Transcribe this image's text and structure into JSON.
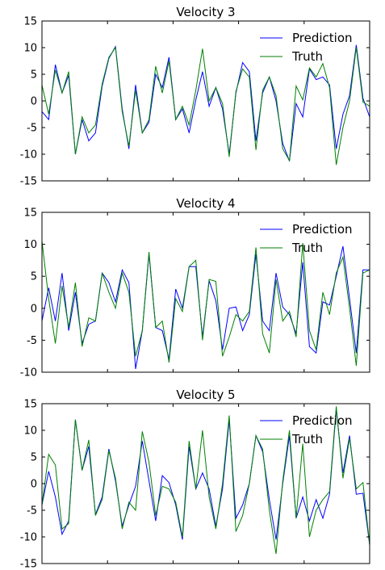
{
  "chart_data": [
    {
      "type": "line",
      "title": "Velocity 3",
      "ylim": [
        -15,
        15
      ],
      "yticks": [
        -15,
        -10,
        -5,
        0,
        5,
        10,
        15
      ],
      "legend": "top-right",
      "series": [
        {
          "name": "Prediction",
          "color": "#0000ff",
          "values": [
            -2,
            -3.5,
            6.8,
            1.5,
            4.8,
            -10,
            -3.5,
            -7.5,
            -6,
            2.8,
            8,
            10.2,
            -1.5,
            -9,
            3,
            -6,
            -4,
            5,
            2.5,
            8.2,
            -3.5,
            -1.5,
            -6,
            0.2,
            5.5,
            -1,
            2.5,
            -1.5,
            -10,
            1.5,
            7.2,
            5.5,
            -7.5,
            1.5,
            4.5,
            0,
            -8,
            -11.3,
            -0.5,
            -3,
            6,
            4,
            4.5,
            3,
            -9,
            -2.5,
            1,
            10.5,
            0.5,
            -3
          ]
        },
        {
          "name": "Truth",
          "color": "#008000",
          "values": [
            3,
            -2.5,
            5.8,
            1.5,
            5.5,
            -10,
            -3,
            -6,
            -4.5,
            3.2,
            8.2,
            10,
            -2,
            -8.5,
            2,
            -6,
            -3.5,
            6.5,
            1.5,
            7.5,
            -3.5,
            -1,
            -4.5,
            2,
            9.8,
            0,
            2.5,
            -0.5,
            -10.5,
            1.8,
            6,
            4.5,
            -9.2,
            2,
            4.5,
            1,
            -9,
            -11.2,
            2.8,
            0.2,
            6.2,
            4.5,
            7,
            2.5,
            -12,
            -5,
            0,
            10,
            -0.2,
            -1
          ]
        }
      ]
    },
    {
      "type": "line",
      "title": "Velocity 4",
      "ylim": [
        -10,
        15
      ],
      "yticks": [
        -10,
        -5,
        0,
        5,
        10,
        15
      ],
      "legend": "top-right",
      "series": [
        {
          "name": "Prediction",
          "color": "#0000ff",
          "values": [
            -2,
            3.2,
            -2,
            5.5,
            -3.5,
            2.5,
            -5.5,
            -2.5,
            -2,
            5.5,
            4,
            1,
            6,
            4,
            -9.5,
            -3.5,
            8.5,
            -3,
            -3.5,
            -8,
            3,
            0,
            6.5,
            6.5,
            -4.5,
            4.3,
            1.2,
            -6.5,
            0,
            0.2,
            -3.5,
            -1,
            8.5,
            -2,
            -3.5,
            5.5,
            0.2,
            -1,
            -4,
            7.2,
            -6,
            -7,
            1,
            0.5,
            5,
            9.7,
            1.5,
            -7,
            6,
            6
          ]
        },
        {
          "name": "Truth",
          "color": "#008000",
          "values": [
            10.5,
            1.5,
            -5.5,
            3.5,
            -3,
            4,
            -6,
            -1.5,
            -2,
            5.5,
            2.5,
            0,
            5.5,
            2.5,
            -7.5,
            -3.5,
            8.8,
            -3,
            -2,
            -8.5,
            1.5,
            -0.5,
            6.5,
            7.5,
            -5,
            4.5,
            4.2,
            -7.5,
            -4.5,
            -1,
            -2,
            -0.5,
            9.5,
            -4,
            -7,
            4.5,
            -2,
            -0.5,
            -4.5,
            10.2,
            -3.5,
            -6.5,
            2.5,
            -1,
            5.5,
            8,
            0,
            -9,
            5.5,
            6
          ]
        }
      ]
    },
    {
      "type": "line",
      "title": "Velocity 5",
      "ylim": [
        -15,
        15
      ],
      "yticks": [
        -15,
        -10,
        -5,
        0,
        5,
        10,
        15
      ],
      "legend": "top-right",
      "series": [
        {
          "name": "Prediction",
          "color": "#0000ff",
          "values": [
            -4,
            2.3,
            -2.5,
            -9.5,
            -7,
            12,
            2.5,
            7,
            -5.8,
            -2.5,
            6.5,
            0.5,
            -8,
            -4,
            -0.5,
            8,
            0.5,
            -7,
            1.5,
            0.2,
            -4,
            -10.5,
            7,
            -1,
            2,
            -1,
            -8,
            -1,
            12,
            -6.5,
            -4,
            0,
            9,
            6,
            -3,
            -10.5,
            0,
            9,
            -6.5,
            -2.5,
            -7,
            -3,
            -6.5,
            -2,
            14,
            2,
            9,
            -2,
            -1.8,
            -11.5
          ]
        },
        {
          "name": "Truth",
          "color": "#008000",
          "values": [
            -4,
            5.5,
            3.5,
            -8.5,
            -7.5,
            12,
            2.5,
            8.2,
            -6,
            -3,
            6.2,
            1,
            -8.5,
            -3.5,
            -5,
            9.8,
            4,
            -6,
            -0.5,
            -1,
            -3.5,
            -10,
            8,
            -1,
            10,
            -2.5,
            -8.5,
            0,
            12.8,
            -9,
            -6,
            0,
            9,
            6.5,
            -5,
            -13.2,
            0.5,
            10,
            -6.5,
            7.5,
            -10,
            -5,
            -3,
            -1.5,
            14.5,
            1,
            8.5,
            -1,
            0.2,
            -11.5
          ]
        }
      ]
    }
  ]
}
